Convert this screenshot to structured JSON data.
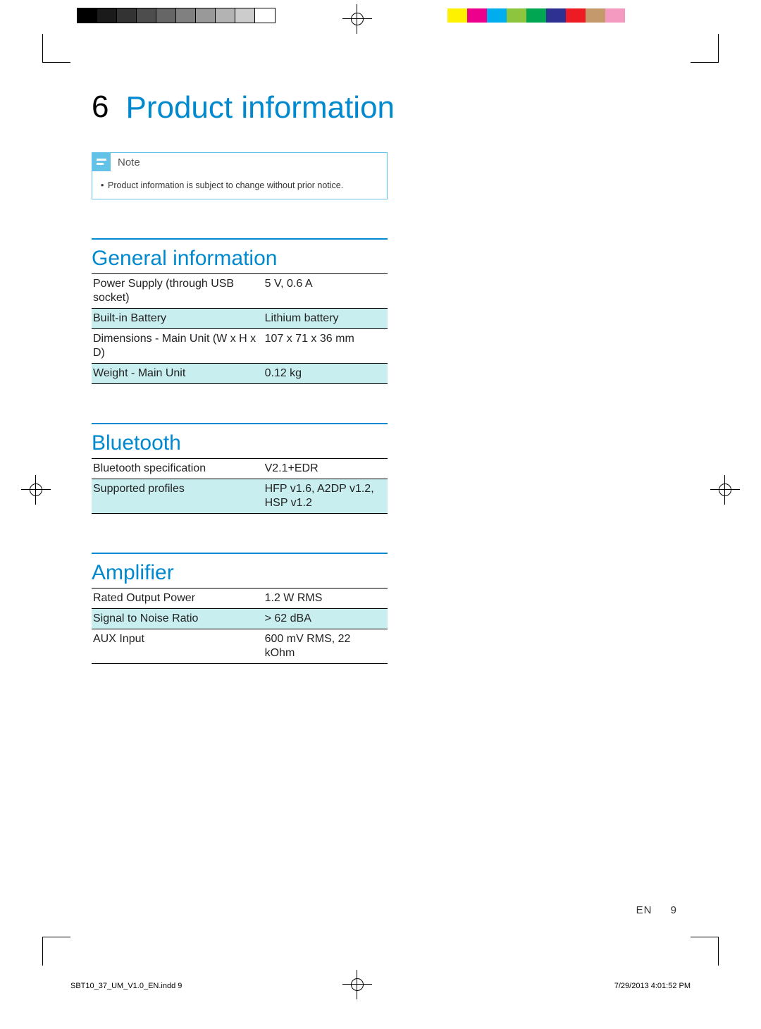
{
  "printer_marks": {
    "grayscale_swatches": [
      "#000000",
      "#1a1a1a",
      "#333333",
      "#4d4d4d",
      "#666666",
      "#808080",
      "#999999",
      "#b3b3b3",
      "#cccccc",
      "#ffffff"
    ],
    "grayscale_border": "#000000",
    "color_swatches": [
      "#fff200",
      "#ec008c",
      "#00aeef",
      "#8dc63e",
      "#00a651",
      "#2e3192",
      "#ed1c24",
      "#c49a6c",
      "#f49ac1",
      "#ffffff"
    ]
  },
  "chapter": {
    "number": "6",
    "title": "Product information"
  },
  "note": {
    "label": "Note",
    "text": "Product information is subject to change without prior notice.",
    "border_color": "#62c2e8",
    "icon_bg": "#62c2e8"
  },
  "accent_color": "#0089cf",
  "alt_row_bg": "#c9eef0",
  "sections": [
    {
      "title": "General information",
      "rows": [
        {
          "label": "Power Supply (through USB socket)",
          "value": "5 V, 0.6 A",
          "alt": false
        },
        {
          "label": "Built-in Battery",
          "value": "Lithium battery",
          "alt": true
        },
        {
          "label": "Dimensions - Main Unit (W x H x D)",
          "value": "107 x 71 x 36 mm",
          "alt": false
        },
        {
          "label": "Weight - Main Unit",
          "value": "0.12 kg",
          "alt": true
        }
      ]
    },
    {
      "title": "Bluetooth",
      "rows": [
        {
          "label": "Bluetooth specification",
          "value": "V2.1+EDR",
          "alt": false
        },
        {
          "label": "Supported profiles",
          "value": "HFP v1.6, A2DP v1.2, HSP v1.2",
          "alt": true
        }
      ]
    },
    {
      "title": "Amplifier",
      "rows": [
        {
          "label": "Rated Output Power",
          "value": "1.2 W RMS",
          "alt": false
        },
        {
          "label": "Signal to Noise Ratio",
          "value": "> 62 dBA",
          "alt": true
        },
        {
          "label": "AUX Input",
          "value": "600 mV RMS, 22 kOhm",
          "alt": false
        }
      ]
    }
  ],
  "footer": {
    "lang": "EN",
    "page": "9"
  },
  "preflight": {
    "file": "SBT10_37_UM_V1.0_EN.indd   9",
    "timestamp": "7/29/2013   4:01:52 PM"
  }
}
